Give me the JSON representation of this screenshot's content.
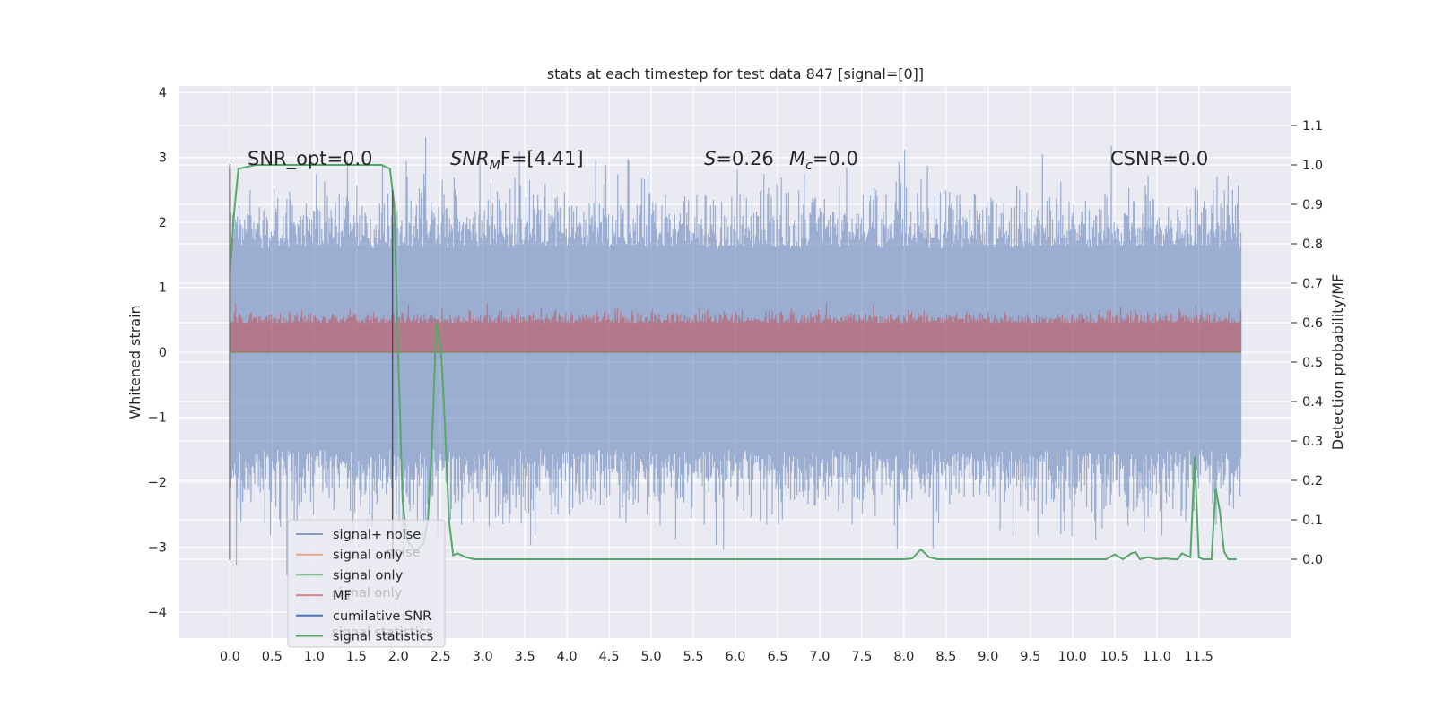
{
  "chart_data": {
    "type": "line",
    "title": "stats at each timestep for test data 847 [signal=[0]]",
    "xlabel": "",
    "ylabel": "Whitened strain",
    "ylabel_right": "Detection probability/MF",
    "xlim": [
      -0.6,
      12.6
    ],
    "ylim": [
      -4.4,
      4.1
    ],
    "ylim_right": [
      -0.2,
      1.2
    ],
    "x_ticks": [
      0.0,
      0.5,
      1.0,
      1.5,
      2.0,
      2.5,
      3.0,
      3.5,
      4.0,
      4.5,
      5.0,
      5.5,
      6.0,
      6.5,
      7.0,
      7.5,
      8.0,
      8.5,
      9.0,
      9.5,
      10.0,
      10.5,
      11.0,
      11.5
    ],
    "x_tick_labels": [
      "0.0",
      "0.5",
      "1.0",
      "1.5",
      "2.0",
      "2.5",
      "3.0",
      "3.5",
      "4.0",
      "4.5",
      "5.0",
      "5.5",
      "6.0",
      "6.5",
      "7.0",
      "7.5",
      "8.0",
      "8.5",
      "9.0",
      "9.5",
      "10.0",
      "10.5",
      "11.0",
      "11.5"
    ],
    "y_ticks": [
      -4,
      -3,
      -2,
      -1,
      0,
      1,
      2,
      3,
      4
    ],
    "y_tick_labels": [
      "−4",
      "−3",
      "−2",
      "−1",
      "0",
      "1",
      "2",
      "3",
      "4"
    ],
    "y_ticks_right": [
      0.0,
      0.1,
      0.2,
      0.3,
      0.4,
      0.5,
      0.6,
      0.7,
      0.8,
      0.9,
      1.0,
      1.1
    ],
    "y_tick_labels_right": [
      "0.0",
      "0.1",
      "0.2",
      "0.3",
      "0.4",
      "0.5",
      "0.6",
      "0.7",
      "0.8",
      "0.9",
      "1.0",
      "1.1"
    ],
    "grid": true,
    "legend_placement": "lower-left",
    "annotations": {
      "snr_opt": "SNR_opt=0.0",
      "snr_mf_italic": "SNR",
      "snr_mf_sub": "M",
      "snr_mf_rest": "F=[4.41]",
      "s_italic": "S",
      "s_value": "=0.26",
      "mc_italic": "M",
      "mc_sub": "c",
      "mc_value": "=0.0",
      "csnr": "CSNR=0.0"
    },
    "series": [
      {
        "name": "signal+ noise",
        "color": "#4c72b0",
        "axis": "left",
        "style": "noise",
        "x_range": [
          0.0,
          12.0
        ],
        "envelope": [
          -1.5,
          1.6
        ]
      },
      {
        "name": "signal only",
        "color": "#dd8452",
        "axis": "left",
        "style": "flat",
        "x": [
          0.0,
          12.0
        ],
        "values": [
          0.0,
          0.0
        ]
      },
      {
        "name": "signal only",
        "color": "#55a868",
        "axis": "left",
        "style": "flat",
        "x": [
          0.0,
          12.0
        ],
        "values": [
          0.0,
          0.0
        ]
      },
      {
        "name": "MF",
        "color": "#c44e52",
        "axis": "left",
        "style": "mf",
        "x_range": [
          0.0,
          12.0
        ],
        "envelope": [
          0.0,
          0.45
        ]
      },
      {
        "name": "cumilative SNR",
        "color": "#4c72b0",
        "axis": "right",
        "style": "line",
        "x": [
          0.0,
          0.0
        ],
        "values": [
          0.0,
          0.99
        ]
      },
      {
        "name": "signal statistics",
        "color": "#55a868",
        "axis": "right",
        "style": "line",
        "x": [
          0.0,
          0.05,
          0.1,
          0.3,
          1.0,
          1.6,
          1.8,
          1.9,
          1.95,
          2.0,
          2.05,
          2.1,
          2.2,
          2.3,
          2.35,
          2.4,
          2.45,
          2.5,
          2.55,
          2.6,
          2.65,
          2.7,
          2.8,
          2.9,
          3.0,
          3.3,
          4.0,
          5.0,
          6.0,
          7.0,
          7.8,
          7.9,
          8.0,
          8.1,
          8.2,
          8.3,
          8.4,
          9.0,
          10.0,
          10.4,
          10.5,
          10.6,
          10.7,
          10.75,
          10.8,
          10.9,
          11.0,
          11.1,
          11.2,
          11.25,
          11.3,
          11.35,
          11.4,
          11.45,
          11.5,
          11.55,
          11.6,
          11.65,
          11.7,
          11.75,
          11.8,
          11.85,
          11.9,
          11.95
        ],
        "values": [
          0.72,
          0.88,
          0.99,
          1.0,
          1.0,
          1.0,
          1.0,
          0.99,
          0.9,
          0.5,
          0.15,
          0.05,
          0.02,
          0.04,
          0.1,
          0.3,
          0.6,
          0.55,
          0.35,
          0.1,
          0.01,
          0.015,
          0.005,
          0.0,
          0.0,
          0.0,
          0.0,
          0.0,
          0.0,
          0.0,
          0.0,
          0.0,
          0.0,
          0.002,
          0.025,
          0.005,
          0.0,
          0.0,
          0.0,
          0.0,
          0.012,
          0.0,
          0.015,
          0.018,
          0.0,
          0.005,
          0.0,
          0.002,
          0.0,
          0.0,
          0.015,
          0.01,
          0.005,
          0.26,
          0.005,
          0.0,
          0.0,
          0.0,
          0.18,
          0.12,
          0.02,
          0.0,
          0.0,
          0.0
        ]
      }
    ],
    "markers": [
      {
        "x": 0.0,
        "values": [
          -3.2,
          2.9
        ],
        "color": "#555555",
        "axis": "left"
      },
      {
        "x": 1.93,
        "values": [
          -3.2,
          2.5
        ],
        "color": "#555555",
        "axis": "left"
      }
    ],
    "ghost_legend": [
      "noise",
      "signal only",
      "signal statistics"
    ]
  }
}
